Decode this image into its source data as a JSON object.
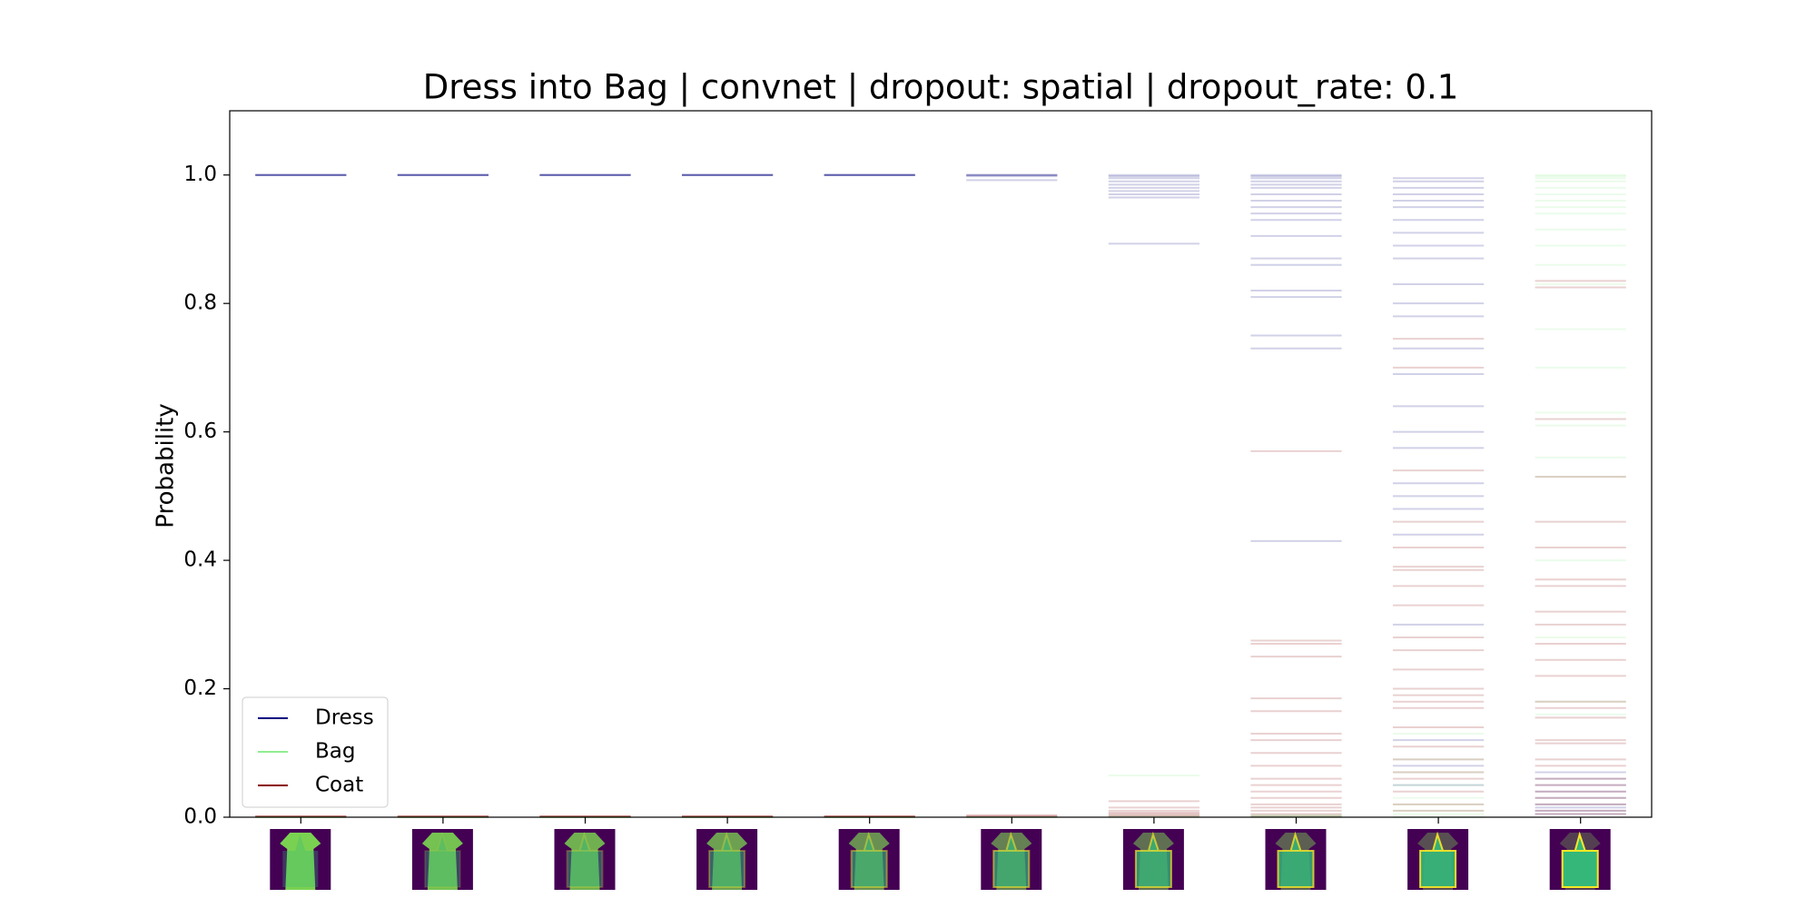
{
  "chart_data": {
    "type": "strip",
    "title": "Dress into Bag | convnet | dropout: spatial | dropout_rate: 0.1",
    "ylabel": "Probability",
    "categories": [
      null,
      null,
      null,
      null,
      null,
      null,
      null,
      null,
      null,
      null
    ],
    "ylim": [
      0,
      1.1
    ],
    "yticks": [
      {
        "value": 0,
        "label": "0.0"
      },
      0.2,
      0.4,
      0.6,
      0.8,
      {
        "value": 1,
        "label": "1.0"
      }
    ],
    "legend": "lower left",
    "series": [
      {
        "name": "Dress",
        "color": "#000080",
        "values": [
          [
            1,
            1,
            1,
            1,
            1
          ],
          [
            1,
            1,
            1,
            1,
            1
          ],
          [
            1,
            1,
            1,
            1,
            1
          ],
          [
            1,
            1,
            1,
            1,
            1
          ],
          [
            1,
            1,
            1,
            1,
            1
          ],
          [
            1,
            1,
            1,
            0.998,
            0.992
          ],
          [
            1,
            0.998,
            0.995,
            0.99,
            0.985,
            0.98,
            0.975,
            0.97,
            0.965,
            0.893
          ],
          [
            1,
            0.998,
            0.995,
            0.99,
            0.985,
            0.98,
            0.97,
            0.96,
            0.95,
            0.94,
            0.93,
            0.905,
            0.87,
            0.86,
            0.82,
            0.81,
            0.75,
            0.73,
            0.43
          ],
          [
            0.995,
            0.99,
            0.98,
            0.97,
            0.96,
            0.95,
            0.93,
            0.91,
            0.89,
            0.87,
            0.83,
            0.8,
            0.78,
            0.73,
            0.69,
            0.64,
            0.6,
            0.575,
            0.52,
            0.5,
            0.48,
            0.44,
            0.3,
            0.12,
            0.08,
            0.05
          ],
          [
            0.07,
            0.06,
            0.05,
            0.04,
            0.03,
            0.02,
            0.015,
            0.01,
            0.005
          ]
        ]
      },
      {
        "name": "Bag",
        "color": "#90ee90",
        "values": [
          [
            0,
            0,
            0,
            0,
            0
          ],
          [
            0,
            0,
            0,
            0,
            0
          ],
          [
            0,
            0,
            0,
            0,
            0
          ],
          [
            0,
            0,
            0,
            0,
            0
          ],
          [
            0,
            0,
            0,
            0,
            0
          ],
          [
            0,
            0,
            0
          ],
          [
            0.065,
            0.002,
            0
          ],
          [
            0.003,
            0.002,
            0.001,
            0
          ],
          [
            0.13,
            0.09,
            0.07,
            0.05,
            0.03,
            0.02,
            0.01,
            0.005,
            0
          ],
          [
            1,
            0.998,
            0.995,
            0.99,
            0.98,
            0.97,
            0.96,
            0.95,
            0.94,
            0.915,
            0.89,
            0.86,
            0.83,
            0.76,
            0.7,
            0.63,
            0.61,
            0.56,
            0.53,
            0.4,
            0.28,
            0.18,
            0.16
          ]
        ]
      },
      {
        "name": "Coat",
        "color": "#8b0000",
        "values": [
          [
            0.001,
            0.001,
            0.001,
            0.001,
            0.001
          ],
          [
            0.001,
            0.001,
            0.001,
            0.001,
            0.001
          ],
          [
            0.001,
            0.001,
            0.001,
            0.001,
            0.001
          ],
          [
            0.001,
            0.001,
            0.001,
            0.001,
            0.001
          ],
          [
            0.001,
            0.001,
            0.001,
            0.001,
            0.001
          ],
          [
            0.001,
            0.002,
            0.003
          ],
          [
            0.025,
            0.015,
            0.01,
            0.007,
            0.005,
            0.003,
            0.001
          ],
          [
            0.57,
            0.275,
            0.27,
            0.25,
            0.185,
            0.165,
            0.13,
            0.12,
            0.1,
            0.08,
            0.06,
            0.05,
            0.04,
            0.03,
            0.02,
            0.015,
            0.01,
            0.005,
            0.002
          ],
          [
            0.745,
            0.7,
            0.54,
            0.46,
            0.42,
            0.39,
            0.385,
            0.36,
            0.33,
            0.28,
            0.26,
            0.23,
            0.2,
            0.19,
            0.18,
            0.17,
            0.14,
            0.11,
            0.09,
            0.07,
            0.06,
            0.04,
            0.02,
            0.01
          ],
          [
            0.835,
            0.825,
            0.62,
            0.53,
            0.46,
            0.42,
            0.37,
            0.36,
            0.32,
            0.3,
            0.27,
            0.245,
            0.22,
            0.18,
            0.17,
            0.155,
            0.12,
            0.115,
            0.09,
            0.08,
            0.06,
            0.05,
            0.04,
            0.03,
            0.02,
            0.01,
            0.005
          ]
        ]
      }
    ]
  }
}
